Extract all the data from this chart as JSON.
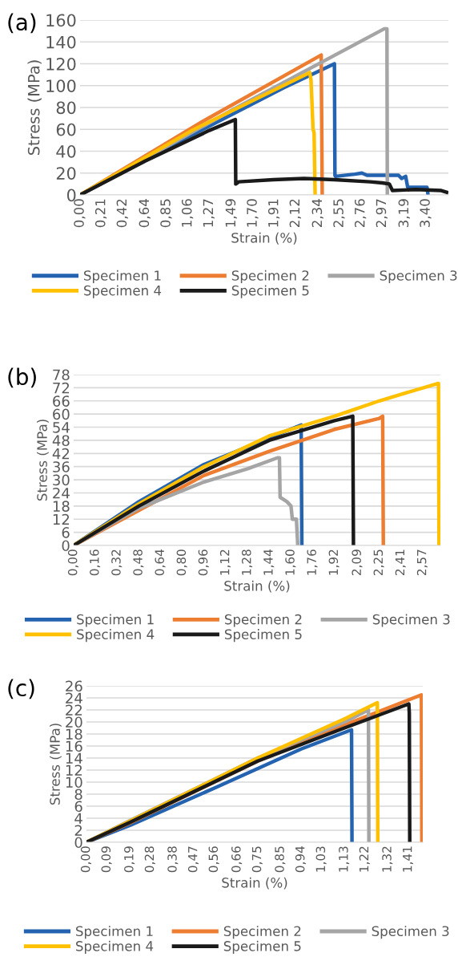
{
  "chart_data": [
    {
      "type": "line",
      "annotations": [
        "(a)"
      ],
      "xlabel": "Strain (%)",
      "ylabel": "Stress (MPa)",
      "xlim": [
        0,
        3.62
      ],
      "ylim": [
        0,
        160
      ],
      "xticks": [
        {
          "value": 0,
          "label": "0,00"
        },
        {
          "value": 0.21,
          "label": "0,21"
        },
        {
          "value": 0.42,
          "label": "0,42"
        },
        {
          "value": 0.64,
          "label": "0,64"
        },
        {
          "value": 0.85,
          "label": "0,85"
        },
        {
          "value": 1.06,
          "label": "1,06"
        },
        {
          "value": 1.27,
          "label": "1,27"
        },
        {
          "value": 1.49,
          "label": "1,49"
        },
        {
          "value": 1.7,
          "label": "1,70"
        },
        {
          "value": 1.91,
          "label": "1,91"
        },
        {
          "value": 2.12,
          "label": "2,12"
        },
        {
          "value": 2.34,
          "label": "2,34"
        },
        {
          "value": 2.55,
          "label": "2,55"
        },
        {
          "value": 2.76,
          "label": "2,76"
        },
        {
          "value": 2.97,
          "label": "2,97"
        },
        {
          "value": 3.19,
          "label": "3,19"
        },
        {
          "value": 3.4,
          "label": "3,40"
        }
      ],
      "yticks": [
        0,
        20,
        40,
        60,
        80,
        100,
        120,
        140,
        160
      ],
      "grid": "y",
      "legend": "bottom",
      "marker": "none",
      "line_style": "solid",
      "series": [
        {
          "name": "Specimen 1",
          "color": "#2463b0",
          "x": [
            0,
            1.0,
            2.0,
            2.5,
            2.505,
            2.51,
            2.7,
            2.77,
            2.82,
            3.13,
            3.16,
            3.2,
            3.22,
            3.41,
            3.42
          ],
          "values": [
            0,
            50,
            98,
            120,
            18,
            17,
            19,
            20,
            18,
            18,
            15,
            17,
            7,
            7,
            0
          ]
        },
        {
          "name": "Specimen 2",
          "color": "#ed7d31",
          "x": [
            0,
            1.2,
            2.37,
            2.38
          ],
          "values": [
            0,
            67,
            128,
            0
          ]
        },
        {
          "name": "Specimen 3",
          "color": "#a5a5a5",
          "x": [
            0,
            1.5,
            2.99,
            3.016,
            3.02
          ],
          "values": [
            0,
            78,
            152,
            152,
            0
          ]
        },
        {
          "name": "Specimen 4",
          "color": "#ffc000",
          "x": [
            0,
            1.1,
            2.257,
            2.27,
            2.29,
            2.3,
            2.31
          ],
          "values": [
            0,
            59,
            112,
            105,
            60,
            57,
            0
          ]
        },
        {
          "name": "Specimen 5",
          "color": "#1a1a1a",
          "x": [
            0,
            0.64,
            1.27,
            1.526,
            1.53,
            1.56,
            1.9,
            2.2,
            2.5,
            2.85,
            2.97,
            3.04,
            3.07,
            3.3,
            3.55,
            3.62
          ],
          "values": [
            0,
            31,
            59,
            69,
            10,
            12,
            14,
            15,
            14,
            12,
            11,
            10,
            4,
            5,
            4,
            2
          ]
        }
      ]
    },
    {
      "type": "line",
      "annotations": [
        "(b)"
      ],
      "xlabel": "Strain (%)",
      "ylabel": "Stress (MPa)",
      "xlim": [
        0,
        2.7
      ],
      "ylim": [
        0,
        78
      ],
      "xticks": [
        {
          "value": 0,
          "label": "0,00"
        },
        {
          "value": 0.16,
          "label": "0,16"
        },
        {
          "value": 0.32,
          "label": "0,32"
        },
        {
          "value": 0.48,
          "label": "0,48"
        },
        {
          "value": 0.64,
          "label": "0,64"
        },
        {
          "value": 0.8,
          "label": "0,80"
        },
        {
          "value": 0.96,
          "label": "0,96"
        },
        {
          "value": 1.12,
          "label": "1,12"
        },
        {
          "value": 1.28,
          "label": "1,28"
        },
        {
          "value": 1.44,
          "label": "1,44"
        },
        {
          "value": 1.6,
          "label": "1,60"
        },
        {
          "value": 1.76,
          "label": "1,76"
        },
        {
          "value": 1.92,
          "label": "1,92"
        },
        {
          "value": 2.09,
          "label": "2,09"
        },
        {
          "value": 2.25,
          "label": "2,25"
        },
        {
          "value": 2.41,
          "label": "2,41"
        },
        {
          "value": 2.57,
          "label": "2,57"
        }
      ],
      "yticks": [
        0,
        6,
        12,
        18,
        24,
        30,
        36,
        42,
        48,
        54,
        60,
        66,
        72,
        78
      ],
      "grid": "y",
      "legend": "bottom",
      "marker": "none",
      "line_style": "solid",
      "series": [
        {
          "name": "Specimen 1",
          "color": "#2463b0",
          "x": [
            0,
            0.48,
            0.96,
            1.28,
            1.675,
            1.68
          ],
          "values": [
            0,
            20,
            37,
            45,
            55,
            0
          ]
        },
        {
          "name": "Specimen 2",
          "color": "#ed7d31",
          "x": [
            0,
            0.96,
            1.44,
            1.92,
            2.25,
            2.275,
            2.28
          ],
          "values": [
            0,
            32,
            43,
            53,
            58,
            59,
            0
          ]
        },
        {
          "name": "Specimen 3",
          "color": "#a5a5a5",
          "x": [
            0,
            0.48,
            0.96,
            1.28,
            1.5,
            1.515,
            1.52,
            1.57,
            1.6,
            1.61,
            1.64,
            1.65
          ],
          "values": [
            0,
            17,
            29,
            35,
            40,
            40,
            22,
            20,
            18,
            12,
            12,
            0
          ]
        },
        {
          "name": "Specimen 4",
          "color": "#ffc000",
          "x": [
            0,
            0.48,
            0.96,
            1.44,
            1.92,
            2.25,
            2.41,
            2.686,
            2.69
          ],
          "values": [
            0,
            19,
            36,
            50,
            59,
            66,
            69,
            74,
            0
          ]
        },
        {
          "name": "Specimen 5",
          "color": "#1a1a1a",
          "x": [
            0,
            0.48,
            0.96,
            1.44,
            1.92,
            2.055,
            2.06
          ],
          "values": [
            0,
            18,
            34,
            48,
            57,
            59,
            0
          ]
        }
      ]
    },
    {
      "type": "line",
      "annotations": [
        "(c)"
      ],
      "xlabel": "Strain (%)",
      "ylabel": "Stress (MPa)",
      "xlim": [
        0,
        1.473
      ],
      "ylim": [
        0,
        26
      ],
      "xticks": [
        {
          "value": 0,
          "label": "0,00"
        },
        {
          "value": 0.09,
          "label": "0,09"
        },
        {
          "value": 0.19,
          "label": "0,19"
        },
        {
          "value": 0.28,
          "label": "0,28"
        },
        {
          "value": 0.38,
          "label": "0,38"
        },
        {
          "value": 0.47,
          "label": "0,47"
        },
        {
          "value": 0.56,
          "label": "0,56"
        },
        {
          "value": 0.66,
          "label": "0,66"
        },
        {
          "value": 0.75,
          "label": "0,75"
        },
        {
          "value": 0.85,
          "label": "0,85"
        },
        {
          "value": 0.94,
          "label": "0,94"
        },
        {
          "value": 1.03,
          "label": "1,03"
        },
        {
          "value": 1.13,
          "label": "1,13"
        },
        {
          "value": 1.22,
          "label": "1,22"
        },
        {
          "value": 1.32,
          "label": "1,32"
        },
        {
          "value": 1.41,
          "label": "1,41"
        }
      ],
      "yticks": [
        0,
        2,
        4,
        6,
        8,
        10,
        12,
        14,
        16,
        18,
        20,
        22,
        24,
        26
      ],
      "grid": "y",
      "legend": "bottom",
      "marker": "none",
      "line_style": "solid",
      "series": [
        {
          "name": "Specimen 1",
          "color": "#2463b0",
          "x": [
            0,
            0.19,
            0.56,
            0.94,
            1.161,
            1.163
          ],
          "values": [
            0,
            2.8,
            9,
            15.5,
            18.7,
            0
          ]
        },
        {
          "name": "Specimen 2",
          "color": "#ed7d31",
          "x": [
            0,
            0.19,
            0.75,
            1.13,
            1.467,
            1.469
          ],
          "values": [
            0,
            3.2,
            13.5,
            19.5,
            24.5,
            0
          ]
        },
        {
          "name": "Specimen 3",
          "color": "#a5a5a5",
          "x": [
            0,
            0.19,
            0.75,
            1.13,
            1.235,
            1.237
          ],
          "values": [
            0,
            3.6,
            14,
            20,
            22,
            0
          ]
        },
        {
          "name": "Specimen 4",
          "color": "#ffc000",
          "x": [
            0,
            0.19,
            0.75,
            1.13,
            1.274,
            1.276
          ],
          "values": [
            0,
            3.5,
            14,
            20.5,
            23.2,
            0
          ]
        },
        {
          "name": "Specimen 5",
          "color": "#1a1a1a",
          "x": [
            0,
            0.19,
            0.75,
            1.13,
            1.412,
            1.414,
            1.416
          ],
          "values": [
            0,
            3.3,
            13.5,
            19,
            23,
            21.5,
            0
          ]
        }
      ]
    }
  ]
}
